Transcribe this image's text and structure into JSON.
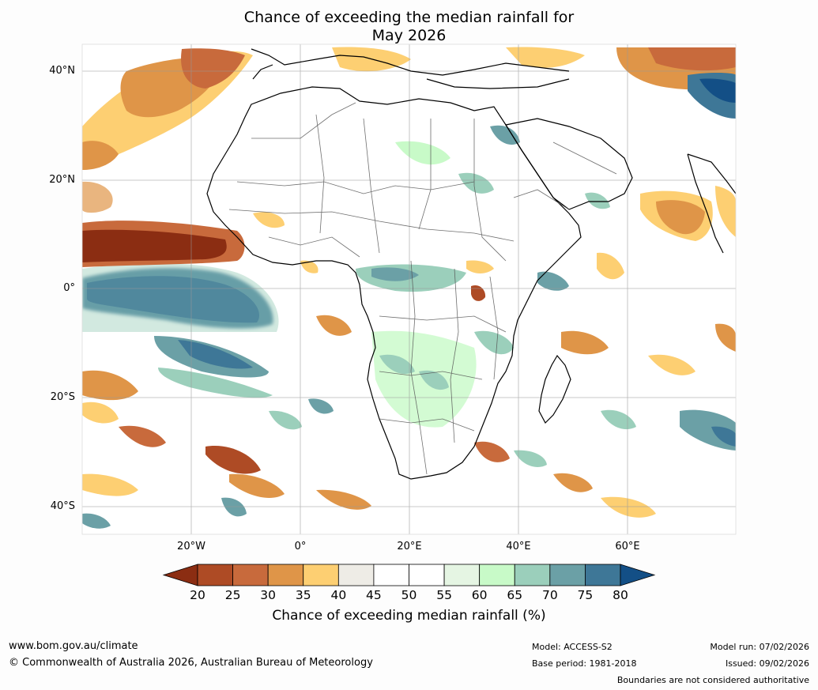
{
  "title": {
    "line1": "Chance of exceeding the median rainfall for",
    "line2": "May 2026"
  },
  "map": {
    "region": "Africa",
    "lat_labels": [
      "40°N",
      "20°N",
      "0°",
      "20°S",
      "40°S"
    ],
    "lon_labels": [
      "20°W",
      "0°",
      "20°E",
      "40°E",
      "60°E"
    ],
    "annotations": [
      {
        "area": "Equatorial Atlantic west of Africa",
        "category": "80+"
      },
      {
        "area": "Tropical North Atlantic near West African coast",
        "category": "<20"
      },
      {
        "area": "Eastern Mediterranean / Caspian region",
        "category": "75-80"
      },
      {
        "area": "Lake Victoria region",
        "category": "20-25"
      },
      {
        "area": "Arabian Sea",
        "category": "30-40"
      }
    ]
  },
  "colorbar": {
    "ticks": [
      "20",
      "25",
      "30",
      "35",
      "40",
      "45",
      "50",
      "55",
      "60",
      "65",
      "70",
      "75",
      "80"
    ],
    "colors": [
      "#8b2d12",
      "#ae4b25",
      "#c86a3c",
      "#df9548",
      "#fdcf72",
      "#eeece6",
      "#ffffff",
      "#ffffff",
      "#e5f5e3",
      "#c8fac8",
      "#9bcfbb",
      "#6ba0a6",
      "#3e7797",
      "#134f86"
    ],
    "title": "Chance of exceeding median rainfall (%)"
  },
  "footer": {
    "url": "www.bom.gov.au/climate",
    "copyright": "© Commonwealth of Australia 2026, Australian Bureau of Meteorology",
    "model": "Model: ACCESS-S2",
    "base_period": "Base period: 1981-2018",
    "model_run": "Model run: 07/02/2026",
    "issued": "Issued: 09/02/2026",
    "disclaimer": "Boundaries are not considered authoritative"
  }
}
